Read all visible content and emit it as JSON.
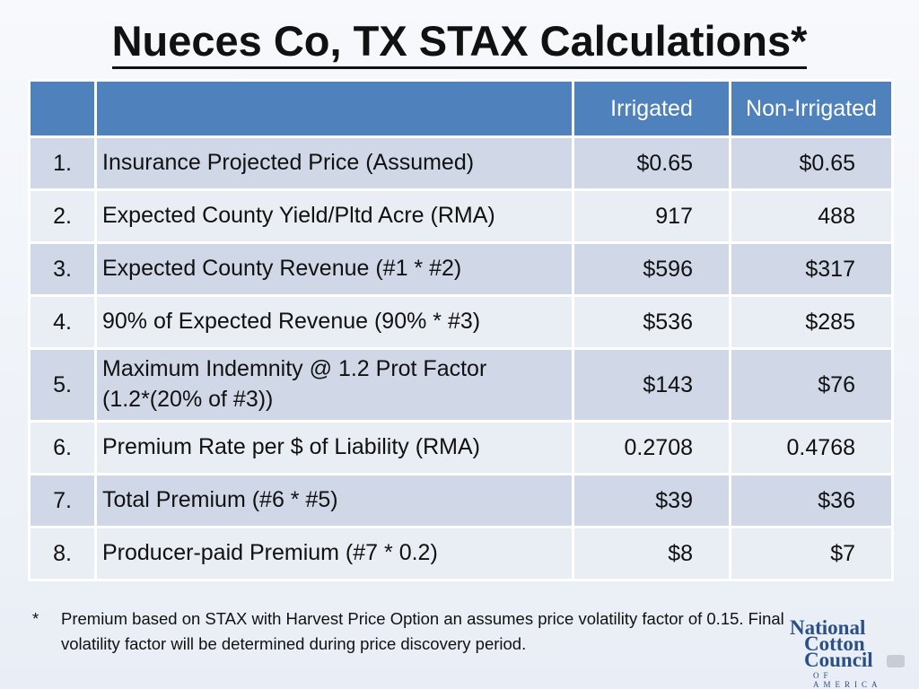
{
  "title": "Nueces Co, TX STAX Calculations*",
  "table": {
    "headers": [
      "",
      "",
      "Irrigated",
      "Non-Irrigated"
    ],
    "rows": [
      {
        "num": "1.",
        "desc": "Insurance Projected Price (Assumed)",
        "irrigated": "$0.65",
        "non_irrigated": "$0.65"
      },
      {
        "num": "2.",
        "desc": "Expected County Yield/Pltd Acre (RMA)",
        "irrigated": "917",
        "non_irrigated": "488"
      },
      {
        "num": "3.",
        "desc": "Expected County Revenue (#1 * #2)",
        "irrigated": "$596",
        "non_irrigated": "$317"
      },
      {
        "num": "4.",
        "desc": "90% of Expected Revenue (90% * #3)",
        "irrigated": "$536",
        "non_irrigated": "$285"
      },
      {
        "num": "5.",
        "desc": "Maximum Indemnity @ 1.2 Prot Factor",
        "desc2": "(1.2*(20% of #3))",
        "irrigated": "$143",
        "non_irrigated": "$76"
      },
      {
        "num": "6.",
        "desc": "Premium Rate per $ of Liability (RMA)",
        "irrigated": "0.2708",
        "non_irrigated": "0.4768"
      },
      {
        "num": "7.",
        "desc": "Total Premium (#6 * #5)",
        "irrigated": "$39",
        "non_irrigated": "$36"
      },
      {
        "num": "8.",
        "desc": "Producer-paid Premium (#7 * 0.2)",
        "irrigated": "$8",
        "non_irrigated": "$7"
      }
    ]
  },
  "footnote": {
    "marker": "*",
    "text": "Premium based on STAX with Harvest Price Option an assumes price volatility factor of 0.15. Final volatility factor will be determined during price discovery period."
  },
  "logo": {
    "line1": "National",
    "line2": "Cotton",
    "line3": "Council",
    "tagline": "OF AMERICA"
  },
  "colors": {
    "header_bg": "#4f81bd",
    "row_odd_bg": "#d0d8e8",
    "row_even_bg": "#e9edf4",
    "logo_blue": "#2a4f8a"
  }
}
